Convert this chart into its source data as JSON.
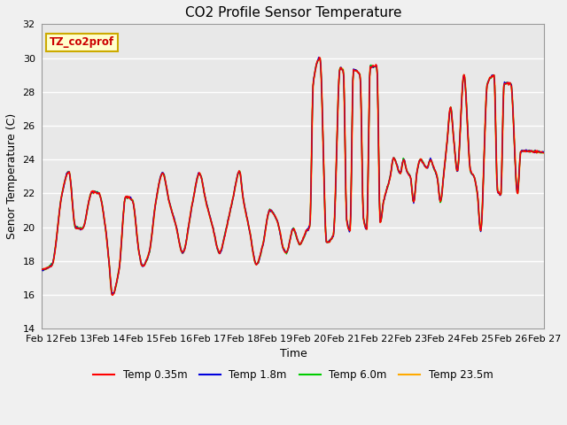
{
  "title": "CO2 Profile Sensor Temperature",
  "xlabel": "Time",
  "ylabel": "Senor Temperature (C)",
  "ylim": [
    14,
    32
  ],
  "yticks": [
    14,
    16,
    18,
    20,
    22,
    24,
    26,
    28,
    30,
    32
  ],
  "annotation_text": "TZ_co2prof",
  "annotation_bg": "#ffffcc",
  "annotation_border": "#ccaa00",
  "fig_bg": "#f0f0f0",
  "plot_bg": "#e8e8e8",
  "series_colors": [
    "#ff0000",
    "#0000dd",
    "#00cc00",
    "#ffaa00"
  ],
  "series_labels": [
    "Temp 0.35m",
    "Temp 1.8m",
    "Temp 6.0m",
    "Temp 23.5m"
  ],
  "series_lw": [
    1.0,
    1.0,
    1.0,
    1.5
  ],
  "x_tick_labels": [
    "Feb 12",
    "Feb 13",
    "Feb 14",
    "Feb 15",
    "Feb 16",
    "Feb 17",
    "Feb 18",
    "Feb 19",
    "Feb 20",
    "Feb 21",
    "Feb 22",
    "Feb 23",
    "Feb 24",
    "Feb 25",
    "Feb 26",
    "Feb 27"
  ],
  "grid_color": "#ffffff",
  "grid_lw": 1.0,
  "key_points": [
    [
      0.0,
      17.5
    ],
    [
      0.3,
      17.8
    ],
    [
      0.6,
      22.0
    ],
    [
      0.8,
      23.3
    ],
    [
      1.0,
      20.0
    ],
    [
      1.2,
      19.9
    ],
    [
      1.5,
      22.1
    ],
    [
      1.7,
      22.0
    ],
    [
      1.9,
      19.9
    ],
    [
      2.0,
      18.0
    ],
    [
      2.1,
      16.0
    ],
    [
      2.3,
      17.5
    ],
    [
      2.5,
      21.8
    ],
    [
      2.7,
      21.6
    ],
    [
      2.9,
      18.5
    ],
    [
      3.0,
      17.7
    ],
    [
      3.2,
      18.5
    ],
    [
      3.4,
      21.5
    ],
    [
      3.6,
      23.2
    ],
    [
      3.8,
      21.5
    ],
    [
      4.0,
      20.1
    ],
    [
      4.2,
      18.5
    ],
    [
      4.5,
      21.5
    ],
    [
      4.7,
      23.2
    ],
    [
      4.9,
      21.5
    ],
    [
      5.1,
      20.0
    ],
    [
      5.3,
      18.5
    ],
    [
      5.5,
      19.9
    ],
    [
      5.7,
      21.7
    ],
    [
      5.9,
      23.3
    ],
    [
      6.0,
      21.8
    ],
    [
      6.2,
      19.8
    ],
    [
      6.4,
      17.8
    ],
    [
      6.6,
      19.0
    ],
    [
      6.8,
      21.0
    ],
    [
      7.0,
      20.5
    ],
    [
      7.1,
      19.8
    ],
    [
      7.2,
      18.8
    ],
    [
      7.3,
      18.5
    ],
    [
      7.5,
      19.9
    ],
    [
      7.7,
      19.0
    ],
    [
      7.9,
      19.8
    ],
    [
      8.0,
      20.1
    ],
    [
      8.1,
      28.5
    ],
    [
      8.3,
      30.0
    ],
    [
      8.5,
      19.1
    ],
    [
      8.7,
      19.5
    ],
    [
      8.9,
      29.4
    ],
    [
      9.0,
      29.3
    ],
    [
      9.1,
      20.4
    ],
    [
      9.2,
      19.8
    ],
    [
      9.3,
      29.3
    ],
    [
      9.5,
      29.0
    ],
    [
      9.6,
      20.5
    ],
    [
      9.7,
      19.9
    ],
    [
      9.8,
      29.5
    ],
    [
      10.0,
      29.5
    ],
    [
      10.1,
      20.3
    ],
    [
      10.2,
      21.5
    ],
    [
      10.4,
      23.0
    ],
    [
      10.5,
      24.1
    ],
    [
      10.7,
      23.2
    ],
    [
      10.8,
      24.0
    ],
    [
      10.9,
      23.3
    ],
    [
      11.0,
      23.0
    ],
    [
      11.1,
      21.5
    ],
    [
      11.2,
      23.3
    ],
    [
      11.3,
      24.0
    ],
    [
      11.5,
      23.5
    ],
    [
      11.6,
      24.0
    ],
    [
      11.7,
      23.5
    ],
    [
      11.8,
      23.0
    ],
    [
      11.9,
      21.5
    ],
    [
      12.0,
      23.2
    ],
    [
      12.1,
      25.1
    ],
    [
      12.2,
      27.1
    ],
    [
      12.3,
      25.1
    ],
    [
      12.4,
      23.3
    ],
    [
      12.6,
      29.0
    ],
    [
      12.8,
      23.3
    ],
    [
      12.9,
      23.0
    ],
    [
      13.0,
      22.0
    ],
    [
      13.1,
      19.8
    ],
    [
      13.3,
      28.5
    ],
    [
      13.5,
      29.0
    ],
    [
      13.6,
      22.2
    ],
    [
      13.7,
      21.9
    ],
    [
      13.8,
      28.5
    ],
    [
      14.0,
      28.5
    ],
    [
      14.2,
      22.0
    ],
    [
      14.3,
      24.5
    ],
    [
      15.0,
      24.4
    ]
  ]
}
